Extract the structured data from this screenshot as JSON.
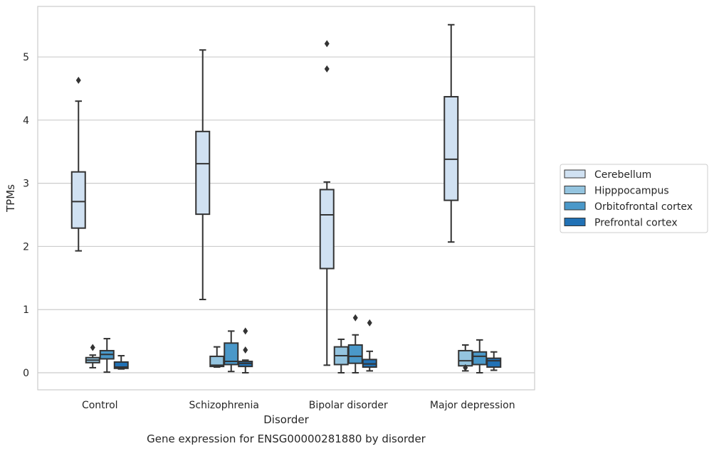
{
  "chart_data": {
    "type": "boxplot",
    "title": "Gene expression for ENSG00000281880 by disorder",
    "xlabel": "Disorder",
    "ylabel": "TPMs",
    "categories": [
      "Control",
      "Schizophrenia",
      "Bipolar disorder",
      "Major depression"
    ],
    "ylim": [
      -0.27,
      5.8
    ],
    "yticks": [
      0,
      1,
      2,
      3,
      4,
      5
    ],
    "grid": "horizontal",
    "legend_position": "right",
    "colors": {
      "Cerebellum": "#d0e1f2",
      "Hipppocampus": "#94c4df",
      "Orbitofrontal cortex": "#4a98c9",
      "Prefrontal cortex": "#2171b5"
    },
    "series": [
      {
        "name": "Cerebellum",
        "boxes": [
          {
            "category": "Control",
            "whisker_low": 1.93,
            "q1": 2.29,
            "median": 2.71,
            "q3": 3.18,
            "whisker_high": 4.3,
            "outliers": [
              4.63
            ]
          },
          {
            "category": "Schizophrenia",
            "whisker_low": 1.16,
            "q1": 2.51,
            "median": 3.31,
            "q3": 3.82,
            "whisker_high": 5.11,
            "outliers": []
          },
          {
            "category": "Bipolar disorder",
            "whisker_low": 0.12,
            "q1": 1.65,
            "median": 2.5,
            "q3": 2.9,
            "whisker_high": 3.02,
            "outliers": [
              4.81,
              5.21
            ]
          },
          {
            "category": "Major depression",
            "whisker_low": 2.07,
            "q1": 2.73,
            "median": 3.38,
            "q3": 4.37,
            "whisker_high": 5.51,
            "outliers": []
          }
        ]
      },
      {
        "name": "Hipppocampus",
        "boxes": [
          {
            "category": "Control",
            "whisker_low": 0.08,
            "q1": 0.16,
            "median": 0.2,
            "q3": 0.24,
            "whisker_high": 0.28,
            "outliers": [
              0.4
            ]
          },
          {
            "category": "Schizophrenia",
            "whisker_low": 0.09,
            "q1": 0.1,
            "median": 0.12,
            "q3": 0.26,
            "whisker_high": 0.41,
            "outliers": []
          },
          {
            "category": "Bipolar disorder",
            "whisker_low": 0.0,
            "q1": 0.13,
            "median": 0.27,
            "q3": 0.41,
            "whisker_high": 0.53,
            "outliers": []
          },
          {
            "category": "Major depression",
            "whisker_low": 0.03,
            "q1": 0.11,
            "median": 0.19,
            "q3": 0.35,
            "whisker_high": 0.44,
            "outliers": [
              0.08
            ]
          }
        ]
      },
      {
        "name": "Orbitofrontal cortex",
        "boxes": [
          {
            "category": "Control",
            "whisker_low": 0.01,
            "q1": 0.22,
            "median": 0.29,
            "q3": 0.35,
            "whisker_high": 0.54,
            "outliers": []
          },
          {
            "category": "Schizophrenia",
            "whisker_low": 0.02,
            "q1": 0.13,
            "median": 0.18,
            "q3": 0.47,
            "whisker_high": 0.66,
            "outliers": []
          },
          {
            "category": "Bipolar disorder",
            "whisker_low": 0.0,
            "q1": 0.15,
            "median": 0.26,
            "q3": 0.44,
            "whisker_high": 0.6,
            "outliers": [
              0.87
            ]
          },
          {
            "category": "Major depression",
            "whisker_low": 0.0,
            "q1": 0.13,
            "median": 0.26,
            "q3": 0.33,
            "whisker_high": 0.52,
            "outliers": []
          }
        ]
      },
      {
        "name": "Prefrontal cortex",
        "boxes": [
          {
            "category": "Control",
            "whisker_low": 0.06,
            "q1": 0.07,
            "median": 0.09,
            "q3": 0.17,
            "whisker_high": 0.27,
            "outliers": []
          },
          {
            "category": "Schizophrenia",
            "whisker_low": 0.0,
            "q1": 0.1,
            "median": 0.15,
            "q3": 0.18,
            "whisker_high": 0.2,
            "outliers": [
              0.36,
              0.66
            ]
          },
          {
            "category": "Bipolar disorder",
            "whisker_low": 0.03,
            "q1": 0.09,
            "median": 0.14,
            "q3": 0.21,
            "whisker_high": 0.34,
            "outliers": [
              0.79
            ]
          },
          {
            "category": "Major depression",
            "whisker_low": 0.04,
            "q1": 0.09,
            "median": 0.19,
            "q3": 0.23,
            "whisker_high": 0.33,
            "outliers": []
          }
        ]
      }
    ]
  }
}
